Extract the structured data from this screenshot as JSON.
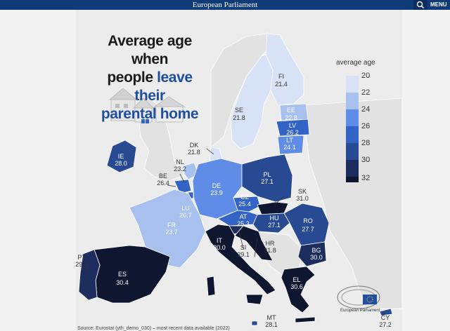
{
  "header": {
    "brand": "European Parliament",
    "menu_label": "MENU"
  },
  "title": {
    "line1": "Average age when",
    "line2a": "people ",
    "line2b": "leave their",
    "line3": "parental home"
  },
  "legend": {
    "title": "average age",
    "ticks": [
      "20",
      "22",
      "24",
      "26",
      "28",
      "30",
      "32"
    ],
    "colors": [
      "#d7e2f6",
      "#a8c0ee",
      "#5f8ce6",
      "#3363c4",
      "#274a93",
      "#1c2d5e",
      "#0e1630"
    ]
  },
  "countries": [
    {
      "code": "FI",
      "value": "21.4"
    },
    {
      "code": "SE",
      "value": "21.8"
    },
    {
      "code": "EE",
      "value": "22.8"
    },
    {
      "code": "LV",
      "value": "26.2"
    },
    {
      "code": "LT",
      "value": "24.1"
    },
    {
      "code": "DK",
      "value": "21.8"
    },
    {
      "code": "IE",
      "value": "28.0"
    },
    {
      "code": "NL",
      "value": "23.2"
    },
    {
      "code": "BE",
      "value": "26.4"
    },
    {
      "code": "DE",
      "value": "23.9"
    },
    {
      "code": "PL",
      "value": "27.1"
    },
    {
      "code": "CZ",
      "value": "25.4"
    },
    {
      "code": "SK",
      "value": "31.0"
    },
    {
      "code": "LU",
      "value": "26.7"
    },
    {
      "code": "AT",
      "value": "25.3"
    },
    {
      "code": "HU",
      "value": "27.1"
    },
    {
      "code": "RO",
      "value": "27.7"
    },
    {
      "code": "FR",
      "value": "23.7"
    },
    {
      "code": "IT",
      "value": "30.0"
    },
    {
      "code": "SI",
      "value": "29.1"
    },
    {
      "code": "HR",
      "value": "31.8"
    },
    {
      "code": "BG",
      "value": "30.0"
    },
    {
      "code": "PT",
      "value": "29.1"
    },
    {
      "code": "ES",
      "value": "30.4"
    },
    {
      "code": "EL",
      "value": "30.6"
    },
    {
      "code": "MT",
      "value": "28.1"
    },
    {
      "code": "CY",
      "value": "27.2"
    }
  ],
  "logo_text": "European Parliament",
  "source": "Source: Eurostat (yth_demo_030) – most recent data available (2022)"
}
